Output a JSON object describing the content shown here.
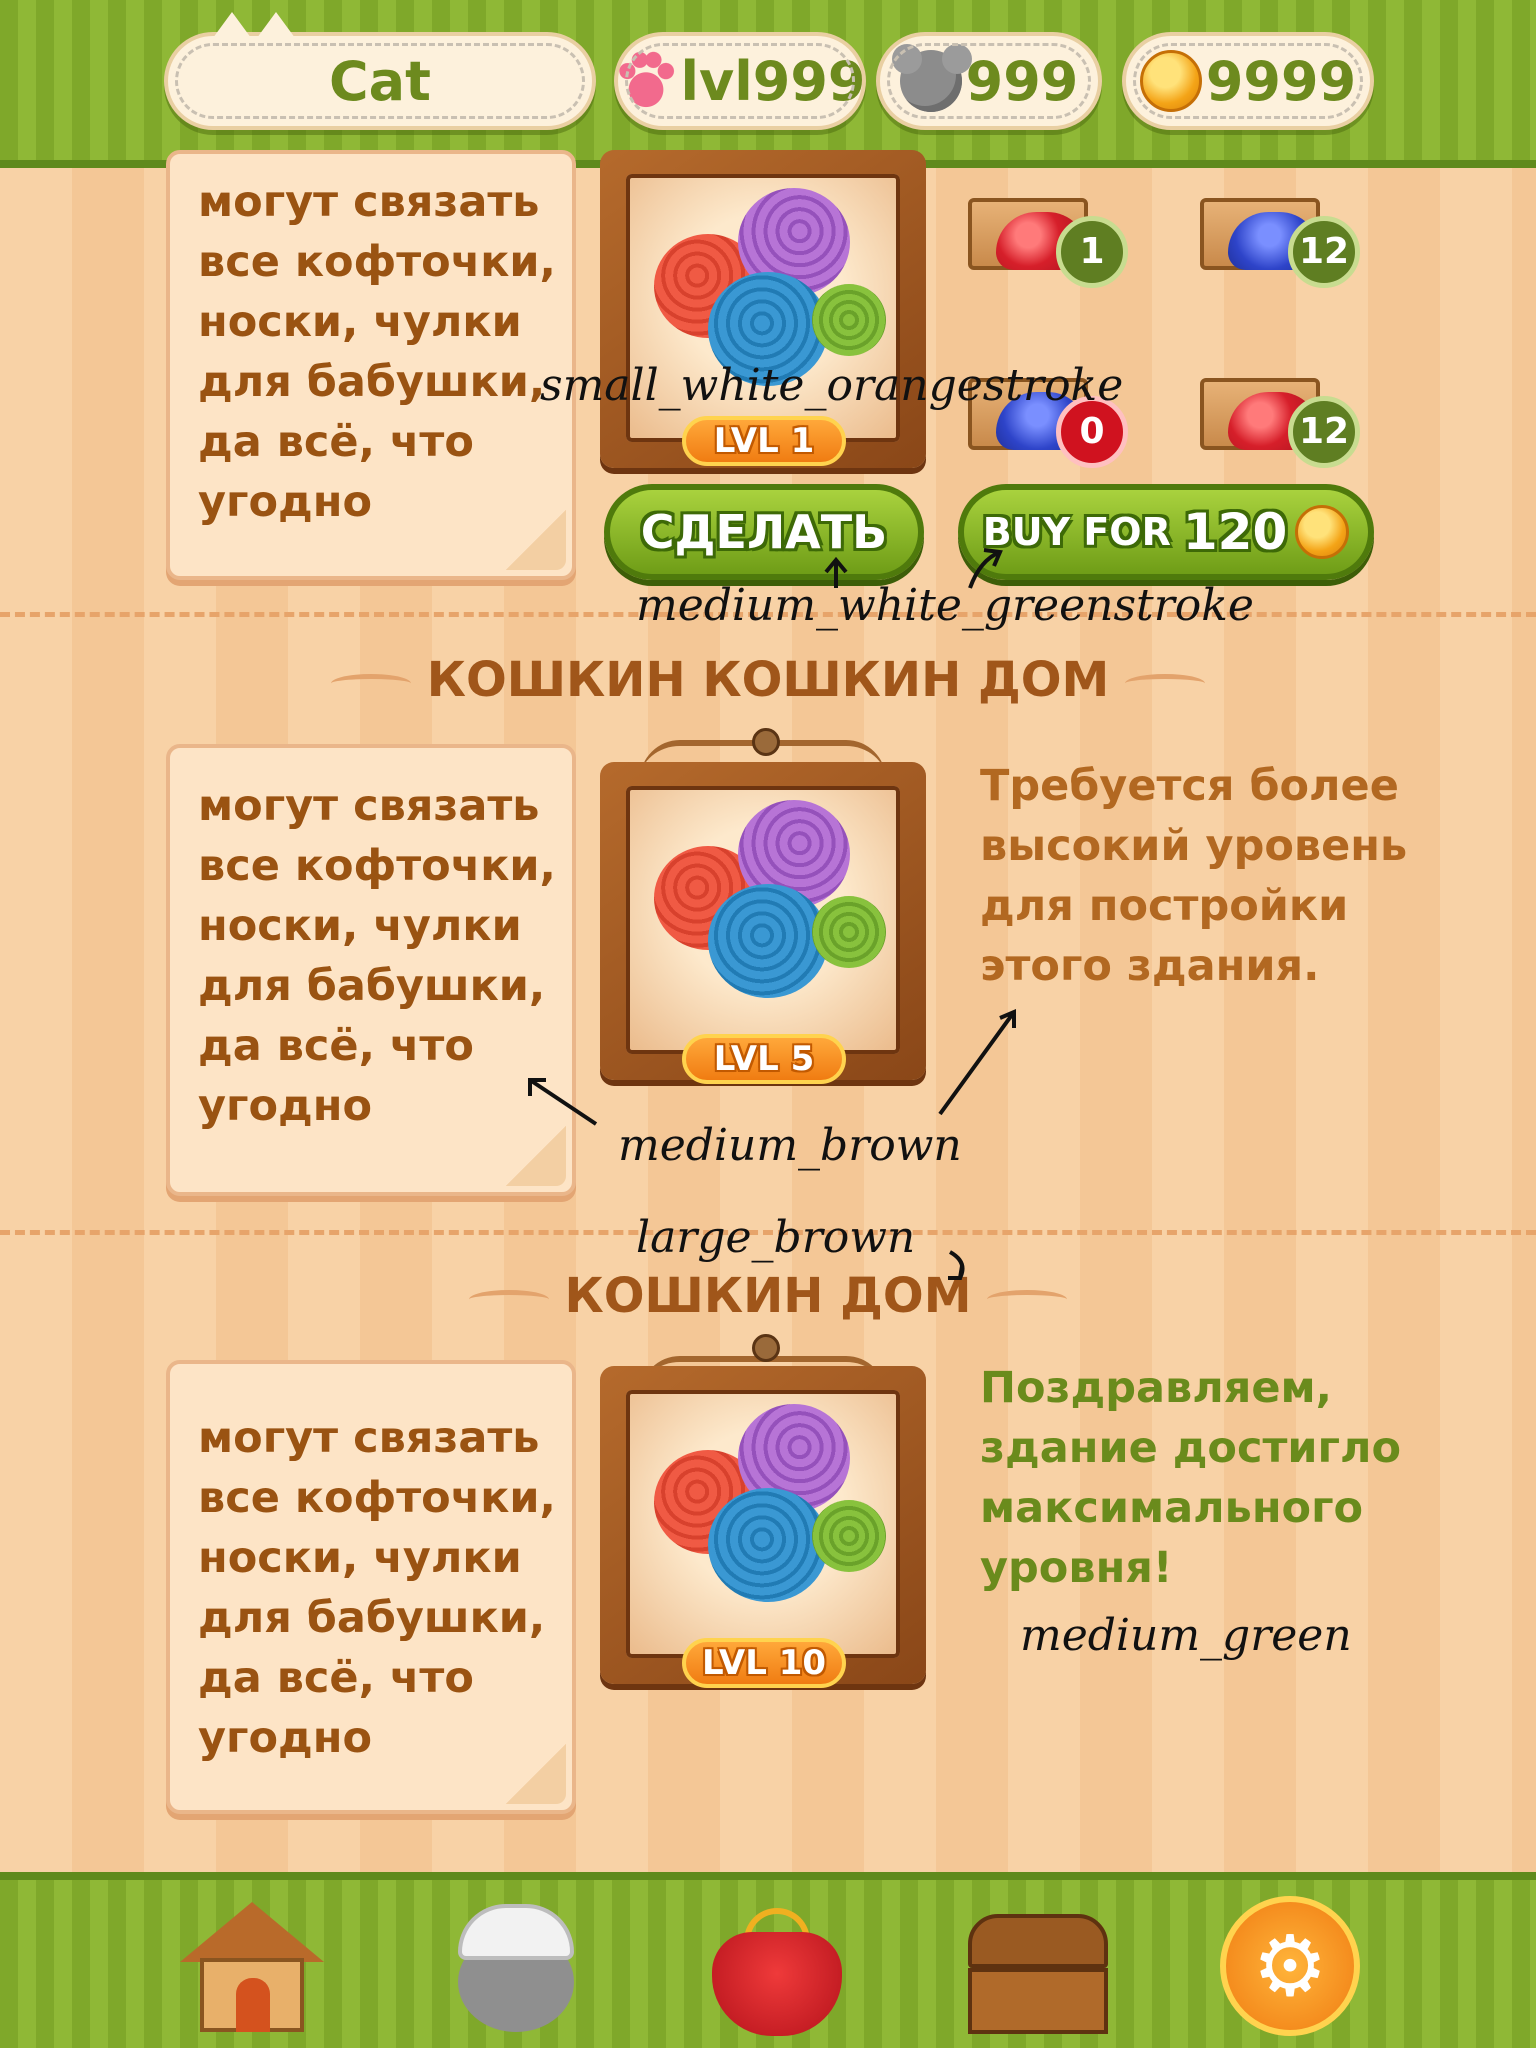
{
  "header": {
    "player_name": "Cat",
    "level": "lvl999",
    "mice": "999",
    "coins": "9999"
  },
  "buildings": [
    {
      "description": "могут связать\nвсе кофточки,\nноски, чулки\nдля бабушки,\nда всё, что\nугодно",
      "level_badge": "LVL 1",
      "resources": [
        {
          "type": "red-ball",
          "count": "1"
        },
        {
          "type": "blue-mouse",
          "count": "12"
        },
        {
          "type": "blue-mouse",
          "count": "0"
        },
        {
          "type": "red-ball",
          "count": "12"
        }
      ],
      "make_button": "СДЕЛАТЬ",
      "buy_button": {
        "prefix": "BUY FOR",
        "price": "120"
      }
    },
    {
      "title": "КОШКИН КОШКИН ДОМ",
      "description": "могут связать\nвсе кофточки,\nноски, чулки\nдля бабушки,\nда всё, что\nугодно",
      "level_badge": "LVL 5",
      "status": "Требуется более\nвысокий уровень\nдля постройки\nэтого здания."
    },
    {
      "title": "КОШКИН ДОМ",
      "description": "могут связать\nвсе кофточки,\nноски, чулки\nдля бабушки,\nда всё, что\nугодно",
      "level_badge": "LVL 10",
      "status": "Поздравляем,\nздание достигло\nмаксимального\nуровня!"
    }
  ],
  "annotations": {
    "small_white_orangestroke": "small_white_orangestroke",
    "medium_white_greenstroke": "medium_white_greenstroke",
    "medium_brown": "medium_brown",
    "large_brown": "large_brown",
    "medium_green": "medium_green"
  },
  "nav": {
    "items": [
      "home-icon",
      "miner-mouse-icon",
      "purse-icon",
      "chest-icon",
      "gear-icon"
    ]
  },
  "colors": {
    "green_bar": "#8fb836",
    "brown_text": "#a0561a",
    "green_text": "#6a8b1c",
    "badge_orange": "#f07c12"
  }
}
